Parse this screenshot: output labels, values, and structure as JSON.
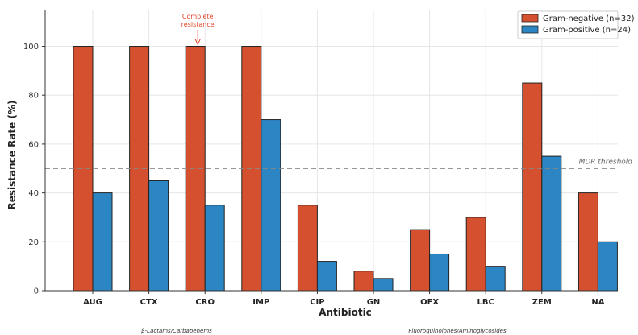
{
  "chart_data": {
    "type": "bar",
    "categories": [
      "AUG",
      "CTX",
      "CRO",
      "IMP",
      "CIP",
      "GN",
      "OFX",
      "LBC",
      "ZEM",
      "NA"
    ],
    "series": [
      {
        "name": "Gram-negative (n=32)",
        "values": [
          100,
          100,
          100,
          100,
          35,
          8,
          25,
          30,
          85,
          40
        ],
        "color": "#d4502e"
      },
      {
        "name": "Gram-positive (n=24)",
        "values": [
          40,
          45,
          35,
          70,
          12,
          5,
          15,
          10,
          55,
          20
        ],
        "color": "#2d86c4"
      }
    ],
    "xlabel": "Antibiotic",
    "ylabel": "Resistance Rate (%)",
    "ylim": [
      0,
      115
    ],
    "yticks": [
      0,
      20,
      40,
      60,
      80,
      100
    ],
    "grid": true,
    "legend_position": "top-right",
    "threshold": {
      "value": 50,
      "label": "MDR threshold"
    },
    "annotation": {
      "lines": [
        "Complete",
        "resistance"
      ],
      "target_category": "CRO",
      "value": 100
    },
    "group_labels": [
      "β-Lactams/Carbapenems",
      "Fluoroquinolones/Aminoglycosides"
    ],
    "colors": {
      "axis": "#333333",
      "grid": "#e6e6e6",
      "threshold": "#888888",
      "annotation": "#e0452a"
    }
  }
}
